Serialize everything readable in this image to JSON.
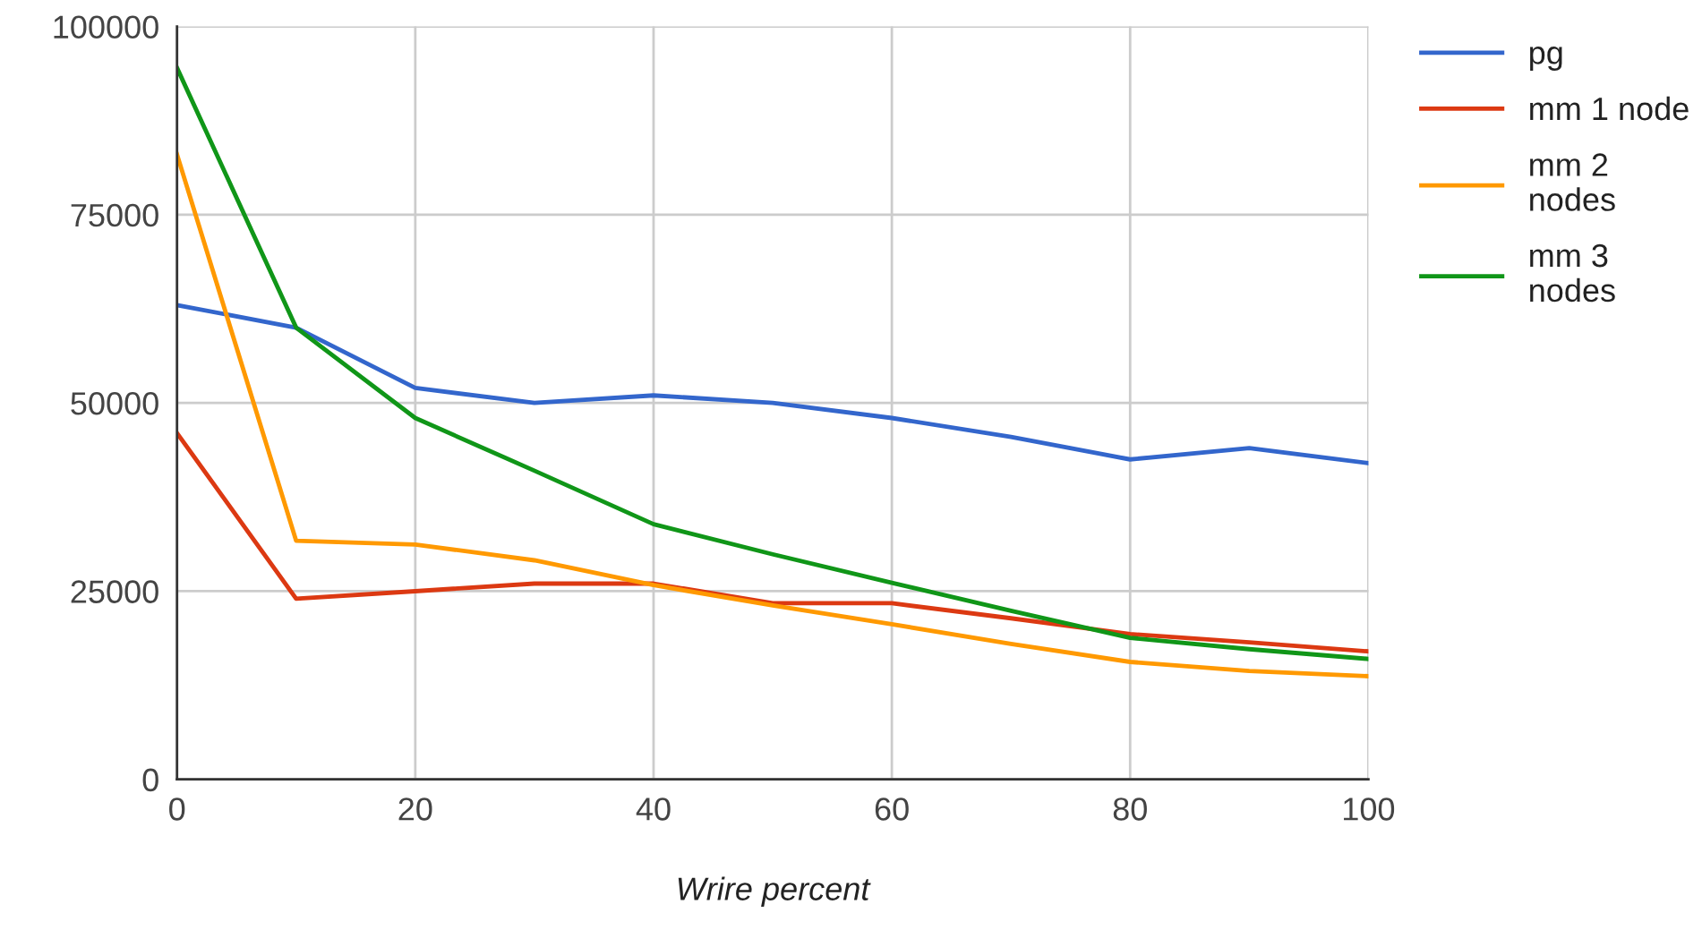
{
  "chart_data": {
    "type": "line",
    "xlabel": "Wrire percent",
    "x": [
      0,
      10,
      20,
      30,
      40,
      50,
      60,
      70,
      80,
      90,
      100
    ],
    "series": [
      {
        "name": "pg",
        "color": "#3366cc",
        "values": [
          63000,
          60000,
          52000,
          50000,
          51000,
          50000,
          48000,
          45500,
          42500,
          44000,
          42000
        ]
      },
      {
        "name": "mm 1 node",
        "color": "#dc3912",
        "values": [
          46000,
          24000,
          25000,
          26000,
          26000,
          23400,
          23400,
          21400,
          19300,
          18200,
          17000
        ]
      },
      {
        "name": "mm 2\nnodes",
        "color": "#ff9900",
        "values": [
          83000,
          31700,
          31200,
          29100,
          25800,
          23100,
          20600,
          18000,
          15600,
          14400,
          13700
        ]
      },
      {
        "name": "mm 3\nnodes",
        "color": "#109618",
        "values": [
          94500,
          60000,
          48000,
          41000,
          33900,
          29900,
          26100,
          22400,
          18800,
          17300,
          16000
        ]
      }
    ],
    "xlim": [
      0,
      100
    ],
    "xticks": [
      0,
      20,
      40,
      60,
      80,
      100
    ],
    "ylim": [
      0,
      100000
    ],
    "yticks": [
      0,
      25000,
      50000,
      75000,
      100000
    ],
    "grid": true,
    "legend": "top right",
    "marker": "none",
    "line_style": "solid"
  }
}
